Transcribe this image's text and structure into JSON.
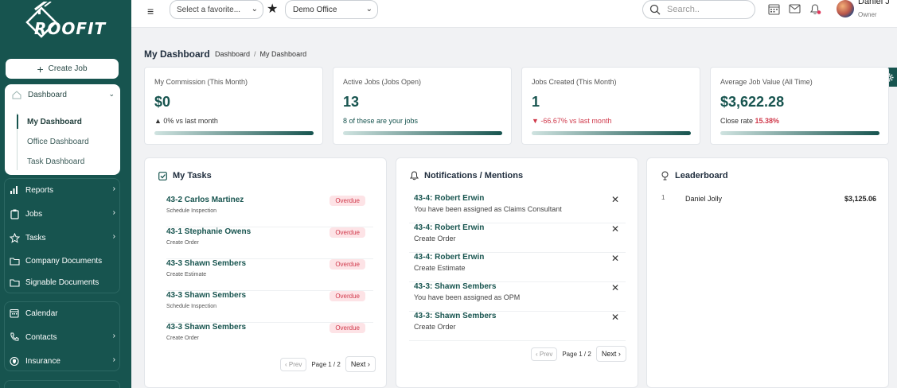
{
  "sidebar": {
    "logo_text": "ROOFIT",
    "create_job": "Create Job",
    "dashboard": {
      "label": "Dashboard",
      "items": [
        "My Dashboard",
        "Office Dashboard",
        "Task Dashboard"
      ]
    },
    "nav": [
      {
        "label": "Reports",
        "icon": "bar-chart-icon",
        "has_arrow": true
      },
      {
        "label": "Jobs",
        "icon": "clipboard-icon",
        "has_arrow": true
      },
      {
        "label": "Tasks",
        "icon": "star-icon",
        "has_arrow": true
      },
      {
        "label": "Company Documents",
        "icon": "folder-icon",
        "has_arrow": false
      },
      {
        "label": "Signable Documents",
        "icon": "folder-icon",
        "has_arrow": false
      },
      {
        "label": "Calendar",
        "icon": "calendar-icon",
        "has_arrow": false
      },
      {
        "label": "Contacts",
        "icon": "phone-icon",
        "has_arrow": true
      },
      {
        "label": "Insurance",
        "icon": "shield-icon",
        "has_arrow": true
      }
    ]
  },
  "header": {
    "favorite_select": "Select a favorite...",
    "office_select": "Demo Office",
    "search_placeholder": "Search..",
    "user_name": "Daniel J",
    "user_role": "Owner"
  },
  "page": {
    "title": "My Dashboard",
    "breadcrumb": [
      "Dashboard",
      "/",
      "My Dashboard"
    ]
  },
  "stats": [
    {
      "label": "My Commission (This Month)",
      "value": "$0",
      "sub": "▲ 0% vs last month",
      "sub_type": "neutral"
    },
    {
      "label": "Active Jobs (Jobs Open)",
      "value": "13",
      "sub": "8 of these are your jobs",
      "sub_type": "pos"
    },
    {
      "label": "Jobs Created (This Month)",
      "value": "1",
      "sub": "▼ -66.67% vs last month",
      "sub_type": "neg"
    },
    {
      "label": "Average Job Value (All Time)",
      "value": "$3,622.28",
      "sub": "Close rate ",
      "sub_highlight": "15.38%",
      "sub_type": "neutral"
    }
  ],
  "tasks": {
    "title": "My Tasks",
    "items": [
      {
        "title": "43-2 Carlos Martinez",
        "sub": "Schedule Inspection",
        "badge": "Overdue"
      },
      {
        "title": "43-1 Stephanie Owens",
        "sub": "Create Order",
        "badge": "Overdue"
      },
      {
        "title": "43-3 Shawn Sembers",
        "sub": "Create Estimate",
        "badge": "Overdue"
      },
      {
        "title": "43-3 Shawn Sembers",
        "sub": "Schedule Inspection",
        "badge": "Overdue"
      },
      {
        "title": "43-3 Shawn Sembers",
        "sub": "Create Order",
        "badge": "Overdue"
      }
    ],
    "pager": {
      "prev": "‹ Prev",
      "page": "Page 1 / 2",
      "next": "Next ›"
    }
  },
  "notifications": {
    "title": "Notifications / Mentions",
    "items": [
      {
        "title": "43-4: Robert Erwin",
        "sub": "You have been assigned as Claims Consultant"
      },
      {
        "title": "43-4: Robert Erwin",
        "sub": "Create Order"
      },
      {
        "title": "43-4: Robert Erwin",
        "sub": "Create Estimate"
      },
      {
        "title": "43-3: Shawn Sembers",
        "sub": "You have been assigned as OPM"
      },
      {
        "title": "43-3: Shawn Sembers",
        "sub": "Create Order"
      }
    ],
    "pager": {
      "prev": "‹ Prev",
      "page": "Page 1 / 2",
      "next": "Next ›"
    }
  },
  "leaderboard": {
    "title": "Leaderboard",
    "rows": [
      {
        "rank": "1",
        "name": "Daniel Jolly",
        "amount": "$3,125.06"
      }
    ]
  },
  "colors": {
    "primary": "#17544f",
    "danger": "#d0394b",
    "badge_bg": "#fde3e6"
  }
}
